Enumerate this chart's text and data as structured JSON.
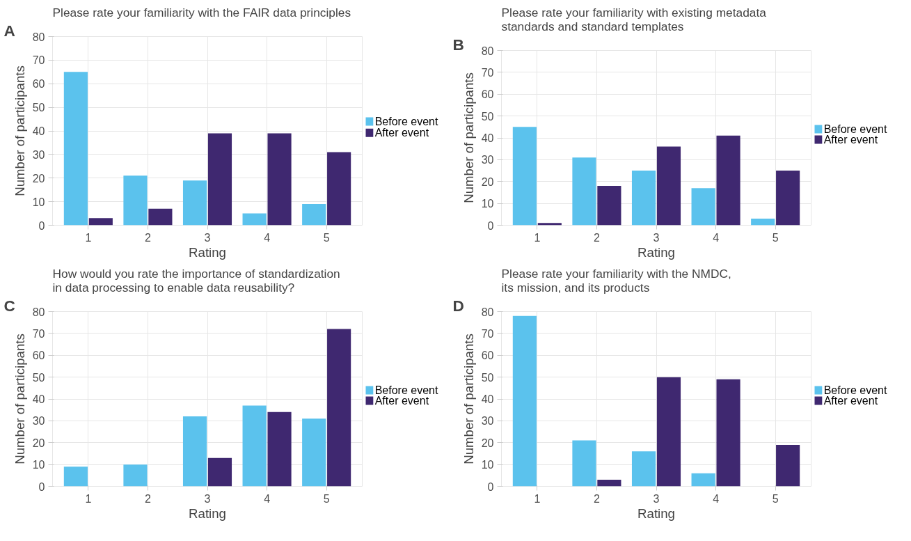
{
  "chart_data": [
    {
      "type": "bar",
      "annotations": [
        "A"
      ],
      "title": "Please rate your familiarity with the FAIR data principles",
      "xlabel": "Rating",
      "ylabel": "Number of participants",
      "categories": [
        "1",
        "2",
        "3",
        "4",
        "5"
      ],
      "ylim": [
        0,
        80
      ],
      "yticks": [
        0,
        10,
        20,
        30,
        40,
        50,
        60,
        70,
        80
      ],
      "grid": true,
      "legend": "right",
      "series": [
        {
          "name": "Before event",
          "color": "#5bc2ed",
          "values": [
            65,
            21,
            19,
            5,
            9
          ]
        },
        {
          "name": "After event",
          "color": "#3f2870",
          "values": [
            3,
            7,
            39,
            39,
            31
          ]
        }
      ]
    },
    {
      "type": "bar",
      "annotations": [
        "B"
      ],
      "title": "Please rate your familiarity with existing metadata\nstandards and standard templates",
      "xlabel": "Rating",
      "ylabel": "Number of participants",
      "categories": [
        "1",
        "2",
        "3",
        "4",
        "5"
      ],
      "ylim": [
        0,
        80
      ],
      "yticks": [
        0,
        10,
        20,
        30,
        40,
        50,
        60,
        70,
        80
      ],
      "grid": true,
      "legend": "right",
      "series": [
        {
          "name": "Before event",
          "color": "#5bc2ed",
          "values": [
            45,
            31,
            25,
            17,
            3
          ]
        },
        {
          "name": "After event",
          "color": "#3f2870",
          "values": [
            1,
            18,
            36,
            41,
            25
          ]
        }
      ]
    },
    {
      "type": "bar",
      "annotations": [
        "C"
      ],
      "title": "How would you rate the importance of standardization\nin data processing to enable data reusability?",
      "xlabel": "Rating",
      "ylabel": "Number of participants",
      "categories": [
        "1",
        "2",
        "3",
        "4",
        "5"
      ],
      "ylim": [
        0,
        80
      ],
      "yticks": [
        0,
        10,
        20,
        30,
        40,
        50,
        60,
        70,
        80
      ],
      "grid": true,
      "legend": "right",
      "series": [
        {
          "name": "Before event",
          "color": "#5bc2ed",
          "values": [
            9,
            10,
            32,
            37,
            31
          ]
        },
        {
          "name": "After event",
          "color": "#3f2870",
          "values": [
            null,
            null,
            13,
            34,
            72
          ]
        }
      ]
    },
    {
      "type": "bar",
      "annotations": [
        "D"
      ],
      "title": "Please rate your familiarity with the NMDC,\nits mission, and its products",
      "xlabel": "Rating",
      "ylabel": "Number of participants",
      "categories": [
        "1",
        "2",
        "3",
        "4",
        "5"
      ],
      "ylim": [
        0,
        80
      ],
      "yticks": [
        0,
        10,
        20,
        30,
        40,
        50,
        60,
        70,
        80
      ],
      "grid": true,
      "legend": "right",
      "series": [
        {
          "name": "Before event",
          "color": "#5bc2ed",
          "values": [
            78,
            21,
            16,
            6,
            null
          ]
        },
        {
          "name": "After event",
          "color": "#3f2870",
          "values": [
            null,
            3,
            50,
            49,
            19
          ]
        }
      ]
    }
  ]
}
